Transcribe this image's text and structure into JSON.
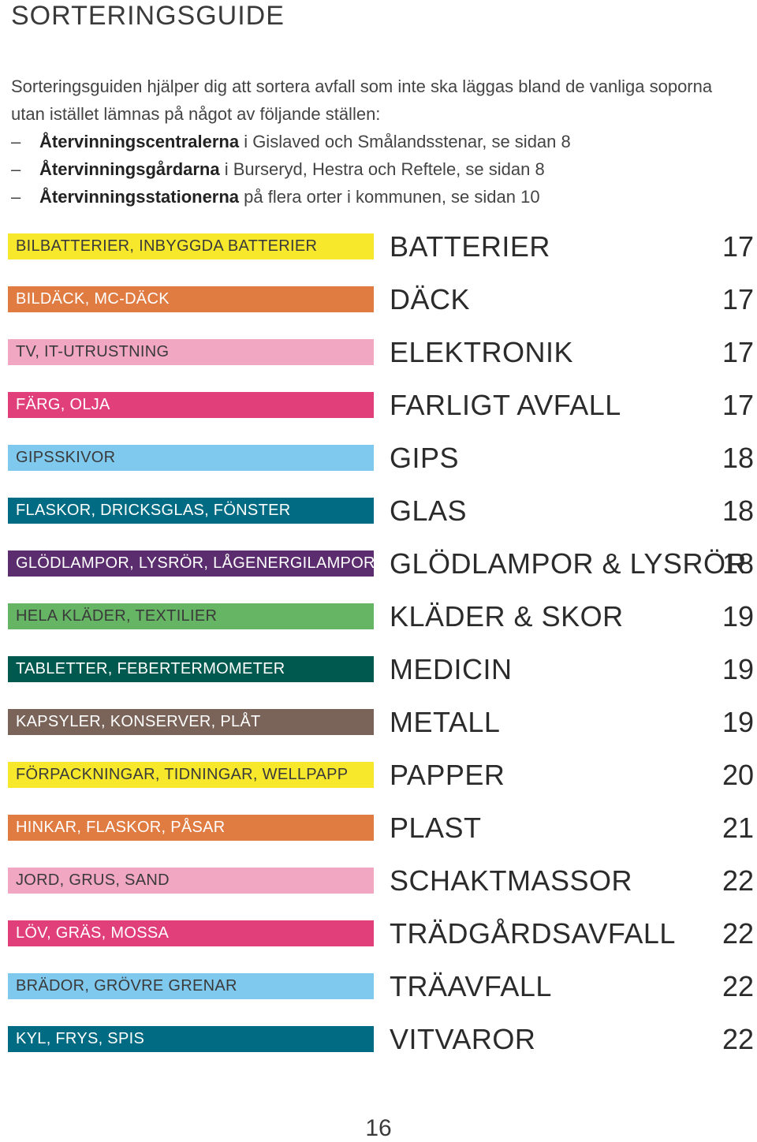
{
  "title": "SORTERINGSGUIDE",
  "intro": {
    "text": "Sorteringsguiden hjälper dig att sortera avfall som inte ska läggas bland de vanliga soporna utan istället lämnas på något av följande ställen:",
    "bullets": [
      {
        "dash": "–",
        "bold": "Återvinningscentralerna",
        "rest": " i Gislaved och Smålandsstenar, se sidan 8"
      },
      {
        "dash": "–",
        "bold": "Återvinningsgårdarna",
        "rest": " i Burseryd, Hestra och Reftele, se sidan 8"
      },
      {
        "dash": "–",
        "bold": "Återvinningsstationerna",
        "rest": " på flera orter i kommunen, se sidan 10"
      }
    ]
  },
  "entries": [
    {
      "label": "BILBATTERIER, INBYGGDA BATTERIER",
      "category": "BATTERIER",
      "page": "17",
      "color": "#f7e82b",
      "text_color": "#3a3a3a"
    },
    {
      "label": "BILDÄCK, MC-DÄCK",
      "category": "DÄCK",
      "page": "17",
      "color": "#e07b42",
      "text_color": "#ffffff"
    },
    {
      "label": "TV, IT-UTRUSTNING",
      "category": "ELEKTRONIK",
      "page": "17",
      "color": "#f1a7c2",
      "text_color": "#3a3a3a"
    },
    {
      "label": "FÄRG, OLJA",
      "category": "FARLIGT AVFALL",
      "page": "17",
      "color": "#e03f7a",
      "text_color": "#ffffff"
    },
    {
      "label": "GIPSSKIVOR",
      "category": "GIPS",
      "page": "18",
      "color": "#7fc9ef",
      "text_color": "#3a3a3a"
    },
    {
      "label": "FLASKOR, DRICKSGLAS, FÖNSTER",
      "category": "GLAS",
      "page": "18",
      "color": "#006b82",
      "text_color": "#ffffff"
    },
    {
      "label": "GLÖDLAMPOR, LYSRÖR, LÅGENERGILAMPOR",
      "category": "GLÖDLAMPOR & LYSRÖR",
      "page": "18",
      "color": "#5b2d6e",
      "text_color": "#ffffff"
    },
    {
      "label": "HELA KLÄDER, TEXTILIER",
      "category": "KLÄDER & SKOR",
      "page": "19",
      "color": "#66b565",
      "text_color": "#3a3a3a"
    },
    {
      "label": "TABLETTER, FEBERTERMOMETER",
      "category": "MEDICIN",
      "page": "19",
      "color": "#00594f",
      "text_color": "#ffffff"
    },
    {
      "label": "KAPSYLER, KONSERVER, PLÅT",
      "category": "METALL",
      "page": "19",
      "color": "#7a6358",
      "text_color": "#ffffff"
    },
    {
      "label": "FÖRPACKNINGAR, TIDNINGAR, WELLPAPP",
      "category": "PAPPER",
      "page": "20",
      "color": "#f7e82b",
      "text_color": "#3a3a3a"
    },
    {
      "label": "HINKAR, FLASKOR, PÅSAR",
      "category": "PLAST",
      "page": "21",
      "color": "#e07b42",
      "text_color": "#ffffff"
    },
    {
      "label": "JORD, GRUS, SAND",
      "category": "SCHAKTMASSOR",
      "page": "22",
      "color": "#f1a7c2",
      "text_color": "#3a3a3a"
    },
    {
      "label": "LÖV, GRÄS, MOSSA",
      "category": "TRÄDGÅRDSAVFALL",
      "page": "22",
      "color": "#e03f7a",
      "text_color": "#ffffff"
    },
    {
      "label": "BRÄDOR, GRÖVRE GRENAR",
      "category": "TRÄAVFALL",
      "page": "22",
      "color": "#7fc9ef",
      "text_color": "#3a3a3a"
    },
    {
      "label": "KYL, FRYS, SPIS",
      "category": "VITVAROR",
      "page": "22",
      "color": "#006b82",
      "text_color": "#ffffff"
    }
  ],
  "page_number": "16"
}
